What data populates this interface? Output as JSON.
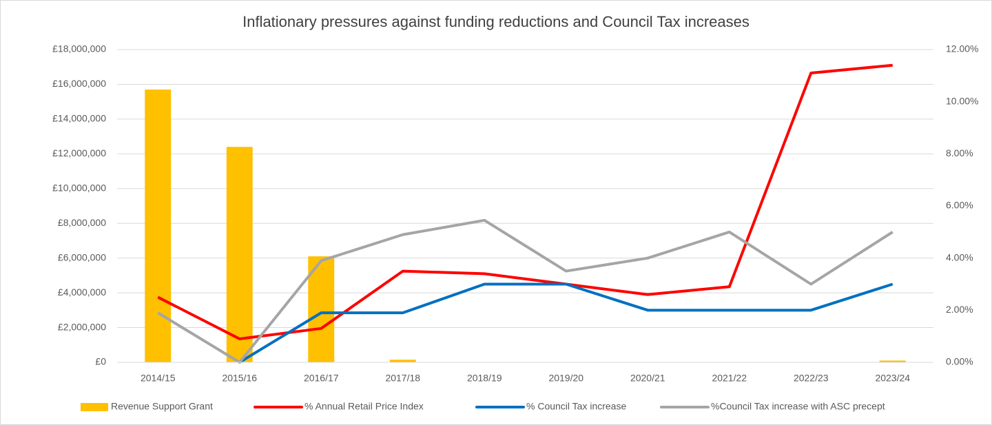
{
  "chart_data": {
    "type": "bar-line",
    "title": "Inflationary pressures against funding reductions and Council Tax increases",
    "categories": [
      "2014/15",
      "2015/16",
      "2016/17",
      "2017/18",
      "2018/19",
      "2019/20",
      "2020/21",
      "2021/22",
      "2022/23",
      "2023/24"
    ],
    "series": [
      {
        "name": "Revenue Support Grant",
        "kind": "bar",
        "color": "#ffc000",
        "values": [
          15700000,
          12400000,
          6100000,
          150000,
          0,
          0,
          0,
          0,
          0,
          100000
        ]
      },
      {
        "name": "% Annual Retail Price Index",
        "kind": "line",
        "axis": "y2",
        "color": "#ff0000",
        "values": [
          2.5,
          0.9,
          1.3,
          3.5,
          3.4,
          3.0,
          2.6,
          2.9,
          11.1,
          11.4
        ]
      },
      {
        "name": "% Council Tax increase",
        "kind": "line",
        "axis": "y2",
        "color": "#0070c0",
        "values": [
          null,
          0.0,
          1.9,
          1.9,
          3.0,
          3.0,
          2.0,
          2.0,
          2.0,
          3.0
        ]
      },
      {
        "name": "%Council Tax increase with ASC precept",
        "kind": "line",
        "axis": "y2",
        "color": "#a5a5a5",
        "values": [
          1.9,
          0.0,
          3.9,
          4.9,
          5.45,
          3.5,
          4.0,
          5.0,
          3.0,
          5.0
        ]
      }
    ],
    "ylim": [
      0,
      18000000
    ],
    "yticks": [
      {
        "value": 0,
        "label": "£0"
      },
      {
        "value": 2000000,
        "label": "£2,000,000"
      },
      {
        "value": 4000000,
        "label": "£4,000,000"
      },
      {
        "value": 6000000,
        "label": "£6,000,000"
      },
      {
        "value": 8000000,
        "label": "£8,000,000"
      },
      {
        "value": 10000000,
        "label": "£10,000,000"
      },
      {
        "value": 12000000,
        "label": "£12,000,000"
      },
      {
        "value": 14000000,
        "label": "£14,000,000"
      },
      {
        "value": 16000000,
        "label": "£16,000,000"
      },
      {
        "value": 18000000,
        "label": "£18,000,000"
      }
    ],
    "y2lim": [
      0,
      12
    ],
    "y2ticks": [
      {
        "value": 0,
        "label": "0.00%"
      },
      {
        "value": 2,
        "label": "2.00%"
      },
      {
        "value": 4,
        "label": "4.00%"
      },
      {
        "value": 6,
        "label": "6.00%"
      },
      {
        "value": 8,
        "label": "8.00%"
      },
      {
        "value": 10,
        "label": "10.00%"
      },
      {
        "value": 12,
        "label": "12.00%"
      }
    ],
    "grid": true,
    "legend": "bottom"
  }
}
